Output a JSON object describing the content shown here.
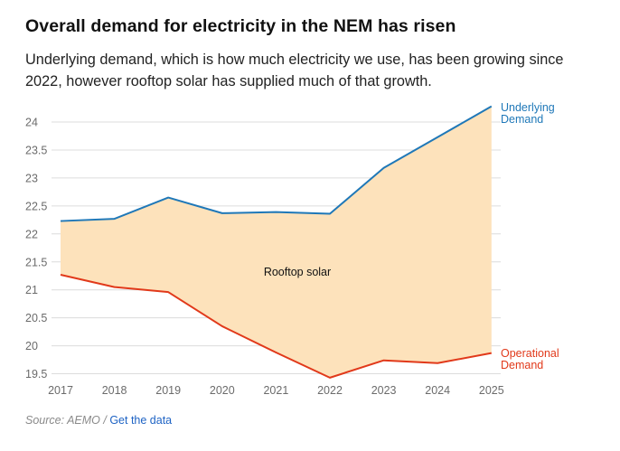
{
  "header": {
    "title": "Overall demand for electricity in the NEM has risen",
    "subtitle": "Underlying demand, which is how much electricity we use, has been growing since 2022, however rooftop solar has supplied much of that growth."
  },
  "footer": {
    "source": "Source: AEMO",
    "separator": " / ",
    "link": "Get the data"
  },
  "colors": {
    "underlying": "#1f78b8",
    "operational": "#e1391a",
    "fill": "#fde2bb",
    "grid": "#dcdcdc",
    "tick": "#6b6b6b"
  },
  "chart_data": {
    "type": "area",
    "title": "Overall demand for electricity in the NEM has risen",
    "x": [
      "2017",
      "2018",
      "2019",
      "2020",
      "2021",
      "2022",
      "2023",
      "2024",
      "2025"
    ],
    "ylim": [
      19.5,
      24.25
    ],
    "yticks": [
      "24",
      "23.5",
      "23",
      "22.5",
      "22",
      "21.5",
      "21",
      "20.5",
      "20",
      "19.5"
    ],
    "grid": true,
    "series": [
      {
        "name": "Underlying Demand",
        "label_lines": [
          "Underlying",
          "Demand"
        ],
        "values": [
          22.23,
          22.27,
          22.65,
          22.37,
          22.39,
          22.36,
          23.18,
          23.73,
          24.28
        ]
      },
      {
        "name": "Operational Demand",
        "label_lines": [
          "Operational",
          "Demand"
        ],
        "values": [
          21.27,
          21.05,
          20.96,
          20.35,
          19.88,
          19.43,
          19.74,
          19.69,
          19.87
        ]
      }
    ],
    "annotation": "Rooftop solar"
  }
}
